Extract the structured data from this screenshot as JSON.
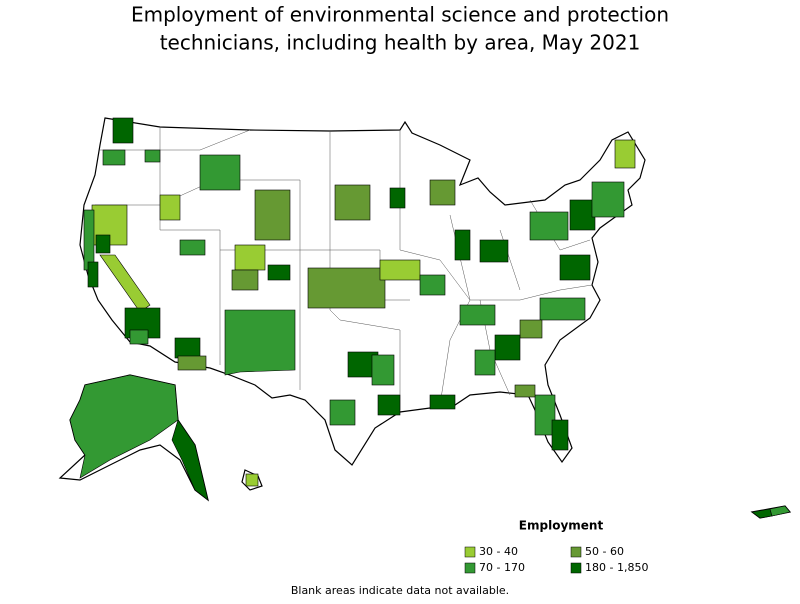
{
  "title_lines": [
    "Employment of environmental science and protection",
    "technicians, including health by area, May 2021"
  ],
  "legend": {
    "title": "Employment",
    "items": [
      {
        "label": "30 - 40",
        "color": "#99cc33"
      },
      {
        "label": "50 - 60",
        "color": "#669933"
      },
      {
        "label": "70 - 170",
        "color": "#339933"
      },
      {
        "label": "180 - 1,850",
        "color": "#006600"
      }
    ]
  },
  "note": "Blank areas indicate data not available."
}
